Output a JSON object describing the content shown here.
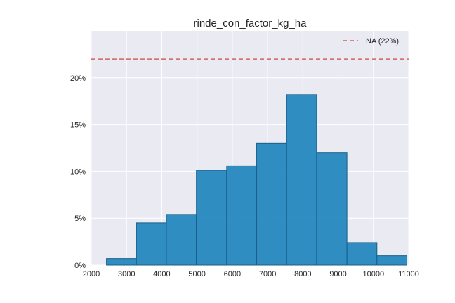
{
  "chart_data": {
    "type": "bar",
    "title": "rinde_con_factor_kg_ha",
    "xlabel": "",
    "ylabel": "",
    "xlim": [
      2000,
      11000
    ],
    "ylim": [
      0,
      25
    ],
    "x_ticks": [
      2000,
      3000,
      4000,
      5000,
      6000,
      7000,
      8000,
      9000,
      10000,
      11000
    ],
    "x_tick_labels": [
      "2000",
      "3000",
      "4000",
      "5000",
      "6000",
      "7000",
      "8000",
      "9000",
      "10000",
      "11000"
    ],
    "y_ticks": [
      0,
      5,
      10,
      15,
      20
    ],
    "y_tick_labels": [
      "0%",
      "5%",
      "10%",
      "15%",
      "20%"
    ],
    "bins": [
      {
        "start": 2430,
        "end": 3280,
        "value": 0.7
      },
      {
        "start": 3280,
        "end": 4130,
        "value": 4.5
      },
      {
        "start": 4130,
        "end": 4980,
        "value": 5.4
      },
      {
        "start": 4980,
        "end": 5840,
        "value": 10.1
      },
      {
        "start": 5840,
        "end": 6690,
        "value": 10.6
      },
      {
        "start": 6690,
        "end": 7540,
        "value": 13.0
      },
      {
        "start": 7540,
        "end": 8390,
        "value": 18.2
      },
      {
        "start": 8390,
        "end": 9250,
        "value": 12.0
      },
      {
        "start": 9250,
        "end": 10100,
        "value": 2.4
      },
      {
        "start": 10100,
        "end": 10950,
        "value": 1.0
      }
    ],
    "reference_line": {
      "value": 22,
      "label": "NA (22%)",
      "style": "dashed",
      "color": "#d65f5f"
    },
    "bar_color": "#1f84be",
    "bar_edge_color": "#1a5f88",
    "background_color": "#eaeaf2",
    "grid": true,
    "grid_color": "#ffffff",
    "legend_position": "top-right"
  }
}
